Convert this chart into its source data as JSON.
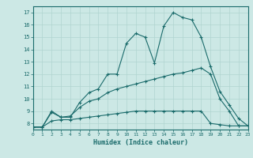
{
  "xlabel": "Humidex (Indice chaleur)",
  "xlim": [
    0,
    23
  ],
  "ylim": [
    7.5,
    17.5
  ],
  "yticks": [
    8,
    9,
    10,
    11,
    12,
    13,
    14,
    15,
    16,
    17
  ],
  "xticks": [
    0,
    1,
    2,
    3,
    4,
    5,
    6,
    7,
    8,
    9,
    10,
    11,
    12,
    13,
    14,
    15,
    16,
    17,
    18,
    19,
    20,
    21,
    22,
    23
  ],
  "background_color": "#cce8e5",
  "line_color": "#1a6b6b",
  "grid_color": "#b0d4d0",
  "lines": [
    {
      "x": [
        0,
        1,
        2,
        3,
        4,
        5,
        6,
        7,
        8,
        9,
        10,
        11,
        12,
        13,
        14,
        15,
        16,
        17,
        18,
        19,
        20,
        21,
        22,
        23
      ],
      "y": [
        7.7,
        7.7,
        9.0,
        8.5,
        8.5,
        9.7,
        10.5,
        10.8,
        12.0,
        12.0,
        14.5,
        15.3,
        15.0,
        12.9,
        15.9,
        17.0,
        16.6,
        16.4,
        15.0,
        12.6,
        10.6,
        9.5,
        8.4,
        7.8
      ]
    },
    {
      "x": [
        0,
        1,
        2,
        3,
        4,
        5,
        6,
        7,
        8,
        9,
        10,
        11,
        12,
        13,
        14,
        15,
        16,
        17,
        18,
        19,
        20,
        21,
        22,
        23
      ],
      "y": [
        7.7,
        7.7,
        8.9,
        8.5,
        8.6,
        9.3,
        9.8,
        10.0,
        10.5,
        10.8,
        11.0,
        11.2,
        11.4,
        11.6,
        11.8,
        12.0,
        12.1,
        12.3,
        12.5,
        12.0,
        10.0,
        9.0,
        7.8,
        7.8
      ]
    },
    {
      "x": [
        0,
        1,
        2,
        3,
        4,
        5,
        6,
        7,
        8,
        9,
        10,
        11,
        12,
        13,
        14,
        15,
        16,
        17,
        18,
        19,
        20,
        21,
        22,
        23
      ],
      "y": [
        7.7,
        7.7,
        8.2,
        8.3,
        8.3,
        8.4,
        8.5,
        8.6,
        8.7,
        8.8,
        8.9,
        9.0,
        9.0,
        9.0,
        9.0,
        9.0,
        9.0,
        9.0,
        9.0,
        8.0,
        7.9,
        7.8,
        7.8,
        7.8
      ]
    }
  ]
}
